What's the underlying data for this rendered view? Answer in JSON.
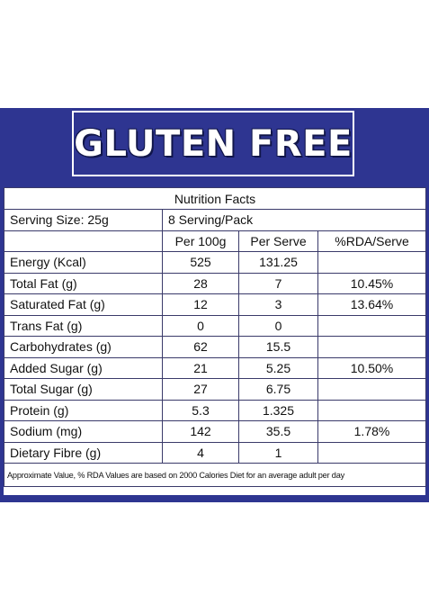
{
  "header": {
    "title": "GLUTEN FREE"
  },
  "colors": {
    "brand_blue": "#2e3591",
    "table_border": "#3a3a6a",
    "text": "#111111"
  },
  "table": {
    "title": "Nutrition Facts",
    "serving_size": "Serving Size: 25g",
    "serving_pack": "8 Serving/Pack",
    "columns": [
      "Per 100g",
      "Per Serve",
      "%RDA/Serve"
    ],
    "rows": [
      {
        "name": "Energy (Kcal)",
        "per100": "525",
        "perServe": "131.25",
        "rda": ""
      },
      {
        "name": "Total Fat (g)",
        "per100": "28",
        "perServe": "7",
        "rda": "10.45%"
      },
      {
        "name": "Saturated Fat (g)",
        "per100": "12",
        "perServe": "3",
        "rda": "13.64%"
      },
      {
        "name": "Trans Fat (g)",
        "per100": "0",
        "perServe": "0",
        "rda": ""
      },
      {
        "name": "Carbohydrates (g)",
        "per100": "62",
        "perServe": "15.5",
        "rda": ""
      },
      {
        "name": "Added Sugar (g)",
        "per100": "21",
        "perServe": "5.25",
        "rda": "10.50%"
      },
      {
        "name": "Total Sugar (g)",
        "per100": "27",
        "perServe": "6.75",
        "rda": ""
      },
      {
        "name": "Protein (g)",
        "per100": "5.3",
        "perServe": "1.325",
        "rda": ""
      },
      {
        "name": "Sodium (mg)",
        "per100": "142",
        "perServe": "35.5",
        "rda": "1.78%"
      },
      {
        "name": "Dietary Fibre (g)",
        "per100": "4",
        "perServe": "1",
        "rda": ""
      }
    ],
    "footnote": "Approximate Value, % RDA Values are based on 2000 Calories Diet for an average adult per day"
  }
}
